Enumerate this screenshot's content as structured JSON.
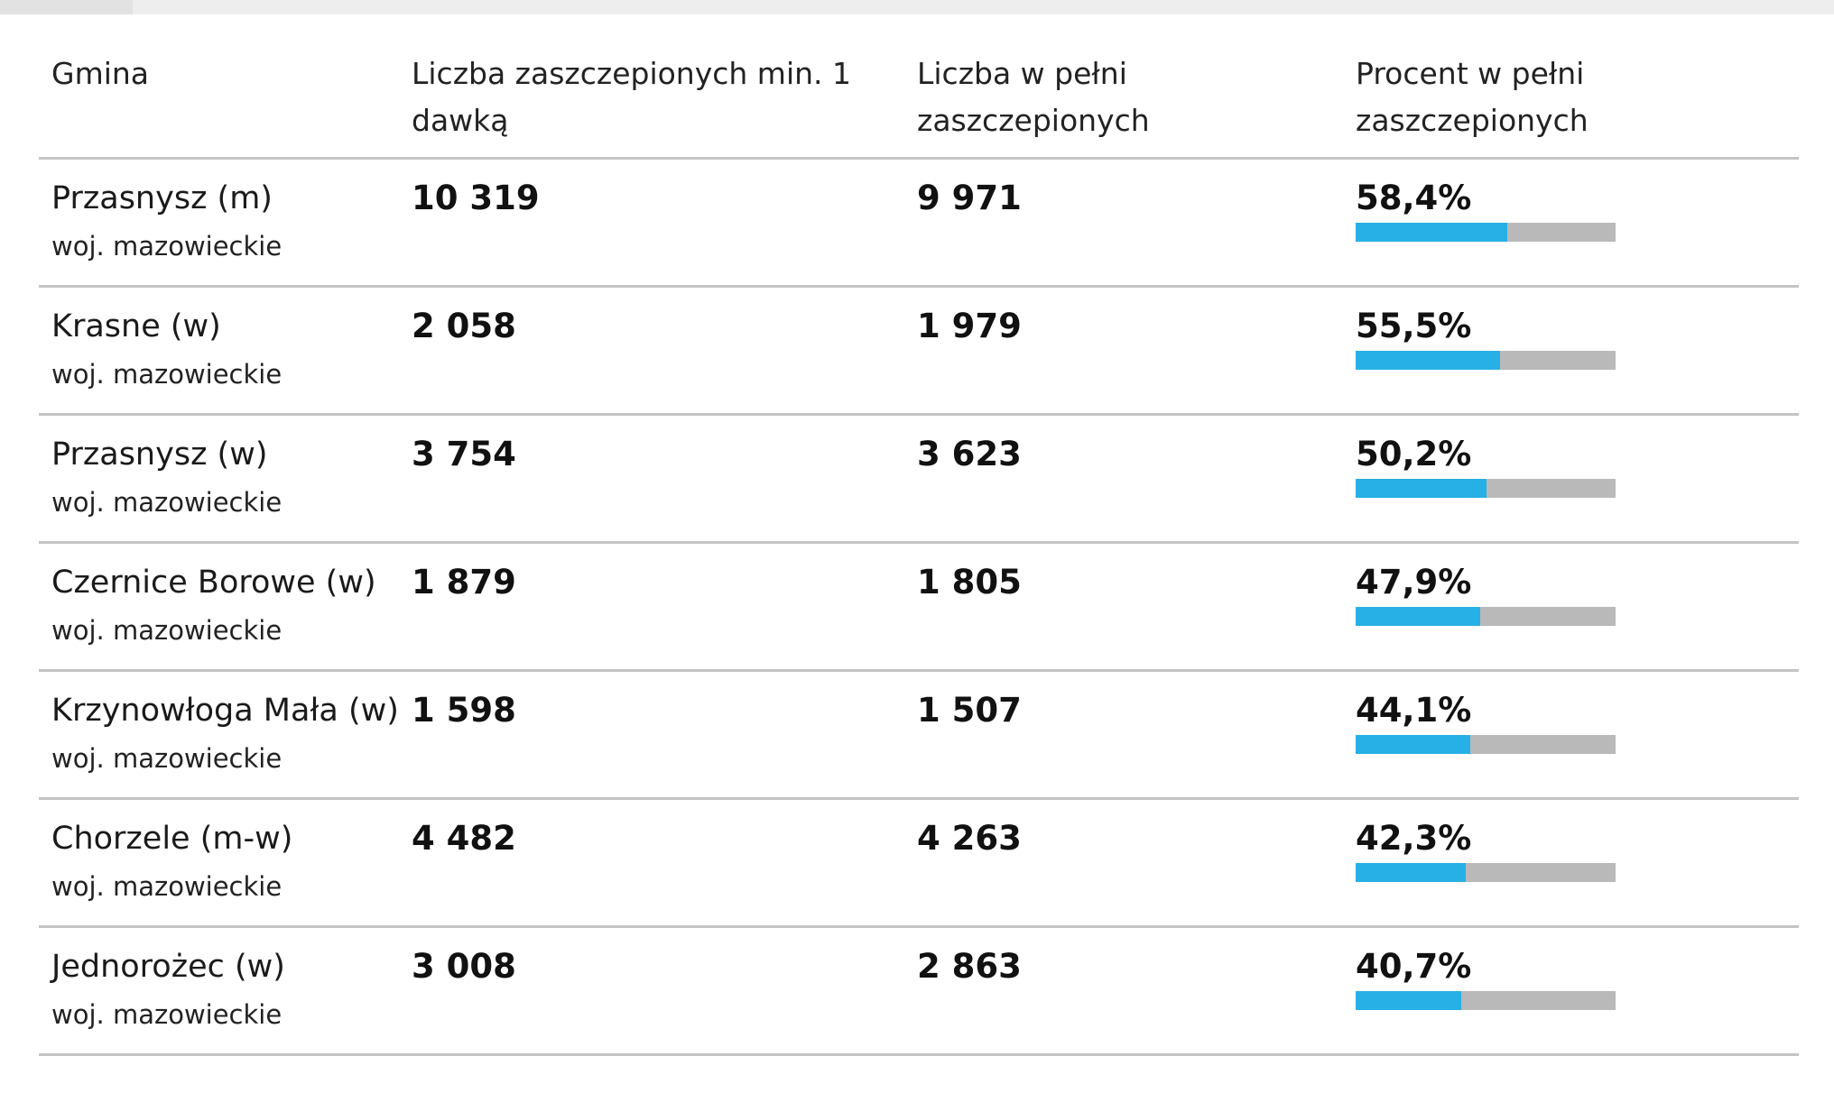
{
  "colors": {
    "bar_fill": "#27b0e6",
    "bar_track": "#b9b9b9",
    "row_divider": "#c4c4c4"
  },
  "table": {
    "headers": {
      "gmina": "Gmina",
      "min_one_dose": "Liczba zaszczepionych min. 1 dawką",
      "fully_vaccinated": "Liczba w pełni zaszczepionych",
      "percent_fully": "Procent w pełni zaszczepionych"
    },
    "rows": [
      {
        "gmina": "Przasnysz (m)",
        "region": "woj. mazowieckie",
        "min_one_dose": "10 319",
        "fully_vaccinated": "9 971",
        "percent_label": "58,4%",
        "percent_value": 58.4
      },
      {
        "gmina": "Krasne (w)",
        "region": "woj. mazowieckie",
        "min_one_dose": "2 058",
        "fully_vaccinated": "1 979",
        "percent_label": "55,5%",
        "percent_value": 55.5
      },
      {
        "gmina": "Przasnysz (w)",
        "region": "woj. mazowieckie",
        "min_one_dose": "3 754",
        "fully_vaccinated": "3 623",
        "percent_label": "50,2%",
        "percent_value": 50.2
      },
      {
        "gmina": "Czernice Borowe (w)",
        "region": "woj. mazowieckie",
        "min_one_dose": "1 879",
        "fully_vaccinated": "1 805",
        "percent_label": "47,9%",
        "percent_value": 47.9
      },
      {
        "gmina": "Krzynowłoga Mała (w)",
        "region": "woj. mazowieckie",
        "min_one_dose": "1 598",
        "fully_vaccinated": "1 507",
        "percent_label": "44,1%",
        "percent_value": 44.1
      },
      {
        "gmina": "Chorzele (m-w)",
        "region": "woj. mazowieckie",
        "min_one_dose": "4 482",
        "fully_vaccinated": "4 263",
        "percent_label": "42,3%",
        "percent_value": 42.3
      },
      {
        "gmina": "Jednorożec (w)",
        "region": "woj. mazowieckie",
        "min_one_dose": "3 008",
        "fully_vaccinated": "2 863",
        "percent_label": "40,7%",
        "percent_value": 40.7
      }
    ]
  }
}
